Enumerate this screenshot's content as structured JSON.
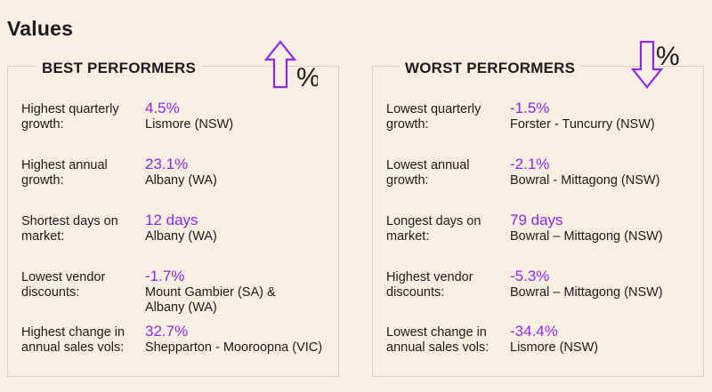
{
  "title": "Values",
  "best": {
    "heading": "BEST PERFORMERS",
    "icon": "up-arrow-percent-icon",
    "rows": [
      {
        "label": "Highest quarterly growth:",
        "value": "4.5%",
        "place": "Lismore (NSW)"
      },
      {
        "label": "Highest annual growth:",
        "value": "23.1%",
        "place": "Albany (WA)"
      },
      {
        "label": "Shortest days on market:",
        "value": "12 days",
        "place": "Albany (WA)"
      },
      {
        "label": "Lowest vendor discounts:",
        "value": "-1.7%",
        "place": "Mount Gambier (SA) & Albany (WA)"
      },
      {
        "label": "Highest change in annual sales vols:",
        "value": "32.7%",
        "place": "Shepparton - Mooroopna (VIC)"
      }
    ]
  },
  "worst": {
    "heading": "WORST PERFORMERS",
    "icon": "down-arrow-percent-icon",
    "rows": [
      {
        "label": "Lowest quarterly growth:",
        "value": "-1.5%",
        "place": "Forster - Tuncurry (NSW)"
      },
      {
        "label": "Lowest annual growth:",
        "value": "-2.1%",
        "place": "Bowral - Mittagong (NSW)"
      },
      {
        "label": "Longest days on market:",
        "value": "79 days",
        "place": "Bowral – Mittagong (NSW)"
      },
      {
        "label": "Highest vendor discounts:",
        "value": "-5.3%",
        "place": "Bowral – Mittagong (NSW)"
      },
      {
        "label": "Lowest change in annual sales vols:",
        "value": "-34.4%",
        "place": "Lismore (NSW)"
      }
    ]
  },
  "colors": {
    "accent": "#8a2be2",
    "background": "#f8efe3",
    "text": "#1b1b1b"
  }
}
